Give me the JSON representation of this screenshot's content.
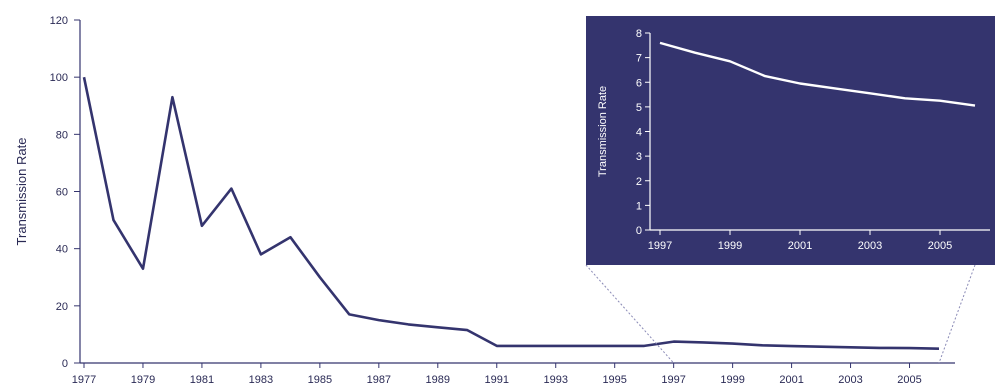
{
  "chart_data": [
    {
      "type": "line",
      "ylabel": "Transmission Rate",
      "xlabel": "",
      "xlim": [
        1977,
        2006
      ],
      "ylim": [
        0,
        120
      ],
      "yticks": [
        0,
        20,
        40,
        60,
        80,
        100,
        120
      ],
      "xticks": [
        1977,
        1979,
        1981,
        1983,
        1985,
        1987,
        1989,
        1991,
        1993,
        1995,
        1997,
        1999,
        2001,
        2003,
        2005
      ],
      "grid": false,
      "series": [
        {
          "x": [
            1977,
            1978,
            1979,
            1980,
            1981,
            1982,
            1983,
            1984,
            1985,
            1986,
            1987,
            1988,
            1989,
            1990,
            1991,
            1992,
            1993,
            1994,
            1995,
            1996,
            1997,
            1998,
            1999,
            2000,
            2001,
            2002,
            2003,
            2004,
            2005,
            2006
          ],
          "y": [
            100,
            50,
            33,
            93,
            48,
            61,
            38,
            44,
            30,
            17,
            15,
            13.5,
            12.5,
            11.5,
            6,
            6,
            6,
            6,
            6,
            6,
            7.5,
            7.2,
            6.8,
            6.2,
            5.9,
            5.7,
            5.5,
            5.3,
            5.2,
            5.0
          ]
        }
      ],
      "colors": {
        "line": "#34346e",
        "axis": "#34346e",
        "text": "#2a2a55"
      }
    },
    {
      "type": "line",
      "ylabel": "Transmission Rate",
      "xlabel": "",
      "xlim": [
        1997,
        2006
      ],
      "ylim": [
        0,
        8
      ],
      "yticks": [
        0,
        1,
        2,
        3,
        4,
        5,
        6,
        7,
        8
      ],
      "xticks": [
        1997,
        1999,
        2001,
        2003,
        2005
      ],
      "grid": false,
      "series": [
        {
          "x": [
            1997,
            1998,
            1999,
            2000,
            2001,
            2002,
            2003,
            2004,
            2005,
            2006
          ],
          "y": [
            7.6,
            7.2,
            6.85,
            6.25,
            5.95,
            5.75,
            5.55,
            5.35,
            5.25,
            5.05
          ]
        }
      ],
      "colors": {
        "background": "#34346e",
        "line": "#ffffff",
        "text": "#ffffff",
        "zoom_connector": "#8a8ab6"
      }
    }
  ]
}
